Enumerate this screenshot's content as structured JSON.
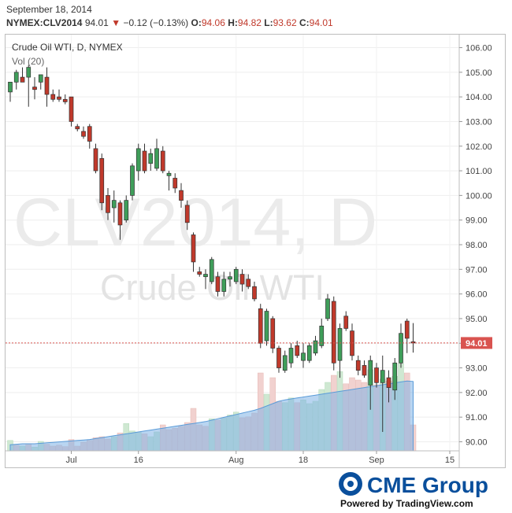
{
  "header": {
    "date": "September 18, 2014",
    "symbol": "NYMEX:CLV2014",
    "last": "94.01",
    "change": "−0.12 (−0.13%)",
    "open_label": "O:",
    "open": "94.06",
    "high_label": "H:",
    "high": "94.82",
    "low_label": "L:",
    "low": "93.62",
    "close_label": "C:",
    "close": "94.01"
  },
  "legend": {
    "title": "Crude Oil WTI, D, NYMEX",
    "volume": "Vol (20)"
  },
  "watermark": {
    "line1": "CLV2014, D",
    "line2": "Crude Oil WTI"
  },
  "price_badge": "94.01",
  "footer": {
    "brand": "CME Group",
    "powered": "Powered by TradingView.com"
  },
  "colors": {
    "up": "#3f9e5a",
    "down": "#c0392b",
    "volume_area": "#7fb3e6",
    "last_price": "#d9534f"
  },
  "chart_data": {
    "type": "candlestick",
    "y_axis": {
      "ylim": [
        89.6,
        106.4
      ],
      "ticks": [
        "106.00",
        "105.00",
        "104.00",
        "103.00",
        "102.00",
        "101.00",
        "100.00",
        "99.00",
        "98.00",
        "97.00",
        "96.00",
        "95.00",
        "94.00",
        "93.00",
        "92.00",
        "91.00",
        "90.00"
      ]
    },
    "x_axis": {
      "ticks": [
        {
          "label": "Jul",
          "index": 10
        },
        {
          "label": "16",
          "index": 21
        },
        {
          "label": "Aug",
          "index": 37
        },
        {
          "label": "18",
          "index": 48
        },
        {
          "label": "Sep",
          "index": 60
        },
        {
          "label": "15",
          "index": 72
        }
      ]
    },
    "last_price": 94.01,
    "candles": [
      {
        "o": 104.2,
        "h": 104.6,
        "l": 103.8,
        "c": 104.6
      },
      {
        "o": 104.6,
        "h": 105.1,
        "l": 104.3,
        "c": 105.0
      },
      {
        "o": 104.8,
        "h": 105.2,
        "l": 104.6,
        "c": 104.6
      },
      {
        "o": 104.8,
        "h": 105.3,
        "l": 103.6,
        "c": 105.2
      },
      {
        "o": 104.4,
        "h": 104.8,
        "l": 103.9,
        "c": 104.3
      },
      {
        "o": 104.6,
        "h": 104.9,
        "l": 104.3,
        "c": 104.9
      },
      {
        "o": 104.8,
        "h": 105.2,
        "l": 103.6,
        "c": 104.1
      },
      {
        "o": 104.1,
        "h": 104.3,
        "l": 103.8,
        "c": 103.9
      },
      {
        "o": 104.0,
        "h": 104.3,
        "l": 103.8,
        "c": 103.9
      },
      {
        "o": 103.9,
        "h": 104.1,
        "l": 103.7,
        "c": 103.8
      },
      {
        "o": 104.0,
        "h": 104.0,
        "l": 102.8,
        "c": 103.0
      },
      {
        "o": 102.8,
        "h": 102.9,
        "l": 102.6,
        "c": 102.7
      },
      {
        "o": 102.6,
        "h": 102.8,
        "l": 102.3,
        "c": 102.4
      },
      {
        "o": 102.8,
        "h": 102.9,
        "l": 101.9,
        "c": 102.2
      },
      {
        "o": 101.9,
        "h": 102.1,
        "l": 100.9,
        "c": 101.0
      },
      {
        "o": 101.5,
        "h": 101.7,
        "l": 99.4,
        "c": 99.7
      },
      {
        "o": 100.0,
        "h": 100.3,
        "l": 99.0,
        "c": 99.3
      },
      {
        "o": 99.5,
        "h": 100.2,
        "l": 98.9,
        "c": 99.8
      },
      {
        "o": 99.7,
        "h": 99.8,
        "l": 98.2,
        "c": 98.8
      },
      {
        "o": 99.0,
        "h": 100.0,
        "l": 98.9,
        "c": 99.8
      },
      {
        "o": 100.0,
        "h": 101.3,
        "l": 99.8,
        "c": 101.2
      },
      {
        "o": 101.0,
        "h": 102.1,
        "l": 100.6,
        "c": 101.9
      },
      {
        "o": 101.8,
        "h": 102.1,
        "l": 100.9,
        "c": 101.0
      },
      {
        "o": 101.3,
        "h": 101.9,
        "l": 101.0,
        "c": 101.7
      },
      {
        "o": 101.1,
        "h": 102.3,
        "l": 101.0,
        "c": 101.9
      },
      {
        "o": 101.8,
        "h": 102.0,
        "l": 100.9,
        "c": 101.0
      },
      {
        "o": 100.8,
        "h": 101.0,
        "l": 100.2,
        "c": 100.9
      },
      {
        "o": 100.7,
        "h": 100.9,
        "l": 100.1,
        "c": 100.3
      },
      {
        "o": 100.2,
        "h": 100.5,
        "l": 99.5,
        "c": 99.8
      },
      {
        "o": 99.6,
        "h": 99.8,
        "l": 98.6,
        "c": 98.9
      },
      {
        "o": 98.4,
        "h": 98.5,
        "l": 96.9,
        "c": 97.3
      },
      {
        "o": 96.9,
        "h": 97.1,
        "l": 96.7,
        "c": 96.8
      },
      {
        "o": 96.7,
        "h": 97.0,
        "l": 96.2,
        "c": 96.8
      },
      {
        "o": 96.5,
        "h": 97.5,
        "l": 96.4,
        "c": 97.4
      },
      {
        "o": 96.7,
        "h": 96.9,
        "l": 95.9,
        "c": 96.1
      },
      {
        "o": 96.1,
        "h": 96.9,
        "l": 95.9,
        "c": 96.6
      },
      {
        "o": 96.6,
        "h": 96.9,
        "l": 96.3,
        "c": 96.7
      },
      {
        "o": 96.5,
        "h": 97.1,
        "l": 96.4,
        "c": 97.0
      },
      {
        "o": 96.8,
        "h": 97.0,
        "l": 96.1,
        "c": 96.4
      },
      {
        "o": 96.6,
        "h": 96.8,
        "l": 96.2,
        "c": 96.3
      },
      {
        "o": 96.3,
        "h": 96.5,
        "l": 95.7,
        "c": 95.8
      },
      {
        "o": 95.4,
        "h": 95.6,
        "l": 93.8,
        "c": 94.0
      },
      {
        "o": 94.1,
        "h": 95.4,
        "l": 93.9,
        "c": 95.3
      },
      {
        "o": 95.0,
        "h": 95.1,
        "l": 93.6,
        "c": 93.8
      },
      {
        "o": 93.8,
        "h": 93.9,
        "l": 92.8,
        "c": 93.0
      },
      {
        "o": 92.9,
        "h": 93.7,
        "l": 92.8,
        "c": 93.5
      },
      {
        "o": 93.2,
        "h": 94.0,
        "l": 93.0,
        "c": 93.8
      },
      {
        "o": 93.9,
        "h": 94.1,
        "l": 93.4,
        "c": 93.5
      },
      {
        "o": 93.3,
        "h": 94.0,
        "l": 93.0,
        "c": 93.6
      },
      {
        "o": 93.3,
        "h": 94.0,
        "l": 93.2,
        "c": 93.9
      },
      {
        "o": 93.6,
        "h": 94.3,
        "l": 93.5,
        "c": 94.1
      },
      {
        "o": 93.9,
        "h": 95.0,
        "l": 93.8,
        "c": 94.7
      },
      {
        "o": 95.0,
        "h": 96.0,
        "l": 94.9,
        "c": 95.8
      },
      {
        "o": 95.7,
        "h": 95.9,
        "l": 92.9,
        "c": 93.2
      },
      {
        "o": 93.3,
        "h": 94.8,
        "l": 92.6,
        "c": 94.6
      },
      {
        "o": 95.1,
        "h": 95.3,
        "l": 94.5,
        "c": 94.6
      },
      {
        "o": 94.5,
        "h": 94.8,
        "l": 93.3,
        "c": 93.5
      },
      {
        "o": 93.3,
        "h": 93.5,
        "l": 92.7,
        "c": 92.9
      },
      {
        "o": 93.1,
        "h": 93.3,
        "l": 92.6,
        "c": 92.7
      },
      {
        "o": 92.3,
        "h": 93.5,
        "l": 91.3,
        "c": 93.3
      },
      {
        "o": 93.0,
        "h": 93.2,
        "l": 92.2,
        "c": 92.4
      },
      {
        "o": 92.4,
        "h": 93.5,
        "l": 90.4,
        "c": 92.9
      },
      {
        "o": 92.6,
        "h": 92.9,
        "l": 91.6,
        "c": 92.2
      },
      {
        "o": 92.1,
        "h": 93.4,
        "l": 91.7,
        "c": 93.2
      },
      {
        "o": 93.2,
        "h": 94.8,
        "l": 93.0,
        "c": 94.4
      },
      {
        "o": 94.9,
        "h": 95.0,
        "l": 93.6,
        "c": 94.2
      },
      {
        "o": 94.06,
        "h": 94.82,
        "l": 93.62,
        "c": 94.01
      }
    ],
    "volume": [
      {
        "v": 0.22,
        "up": true
      },
      {
        "v": 0.12,
        "up": false
      },
      {
        "v": 0.1,
        "up": true
      },
      {
        "v": 0.15,
        "up": false
      },
      {
        "v": 0.08,
        "up": true
      },
      {
        "v": 0.2,
        "up": true
      },
      {
        "v": 0.14,
        "up": false
      },
      {
        "v": 0.1,
        "up": false
      },
      {
        "v": 0.12,
        "up": false
      },
      {
        "v": 0.09,
        "up": false
      },
      {
        "v": 0.24,
        "up": false
      },
      {
        "v": 0.1,
        "up": false
      },
      {
        "v": 0.18,
        "up": false
      },
      {
        "v": 0.22,
        "up": false
      },
      {
        "v": 0.28,
        "up": false
      },
      {
        "v": 0.3,
        "up": false
      },
      {
        "v": 0.25,
        "up": false
      },
      {
        "v": 0.3,
        "up": true
      },
      {
        "v": 0.38,
        "up": false
      },
      {
        "v": 0.58,
        "up": true
      },
      {
        "v": 0.42,
        "up": true
      },
      {
        "v": 0.4,
        "up": true
      },
      {
        "v": 0.36,
        "up": false
      },
      {
        "v": 0.3,
        "up": true
      },
      {
        "v": 0.4,
        "up": true
      },
      {
        "v": 0.55,
        "up": false
      },
      {
        "v": 0.45,
        "up": false
      },
      {
        "v": 0.48,
        "up": false
      },
      {
        "v": 0.52,
        "up": false
      },
      {
        "v": 0.6,
        "up": false
      },
      {
        "v": 0.9,
        "up": false
      },
      {
        "v": 0.55,
        "up": false
      },
      {
        "v": 0.52,
        "up": false
      },
      {
        "v": 0.68,
        "up": true
      },
      {
        "v": 0.65,
        "up": false
      },
      {
        "v": 0.7,
        "up": true
      },
      {
        "v": 0.76,
        "up": true
      },
      {
        "v": 0.82,
        "up": true
      },
      {
        "v": 0.7,
        "up": false
      },
      {
        "v": 0.72,
        "up": false
      },
      {
        "v": 0.8,
        "up": false
      },
      {
        "v": 1.65,
        "up": false
      },
      {
        "v": 1.2,
        "up": true
      },
      {
        "v": 1.55,
        "up": false
      },
      {
        "v": 1.05,
        "up": false
      },
      {
        "v": 1.02,
        "up": true
      },
      {
        "v": 1.12,
        "up": true
      },
      {
        "v": 1.02,
        "up": false
      },
      {
        "v": 1.08,
        "up": true
      },
      {
        "v": 1.0,
        "up": true
      },
      {
        "v": 1.05,
        "up": true
      },
      {
        "v": 1.3,
        "up": true
      },
      {
        "v": 1.45,
        "up": true
      },
      {
        "v": 1.6,
        "up": false
      },
      {
        "v": 1.68,
        "up": true
      },
      {
        "v": 1.42,
        "up": false
      },
      {
        "v": 1.55,
        "up": false
      },
      {
        "v": 1.5,
        "up": false
      },
      {
        "v": 1.45,
        "up": false
      },
      {
        "v": 1.72,
        "up": true
      },
      {
        "v": 1.4,
        "up": false
      },
      {
        "v": 1.52,
        "up": true
      },
      {
        "v": 1.48,
        "up": false
      },
      {
        "v": 1.58,
        "up": true
      },
      {
        "v": 1.85,
        "up": true
      },
      {
        "v": 1.65,
        "up": false
      },
      {
        "v": 0.55,
        "up": false
      }
    ],
    "volume_ma": [
      0.13,
      0.14,
      0.15,
      0.15,
      0.15,
      0.16,
      0.17,
      0.18,
      0.19,
      0.2,
      0.21,
      0.22,
      0.23,
      0.24,
      0.26,
      0.28,
      0.3,
      0.32,
      0.34,
      0.36,
      0.38,
      0.4,
      0.42,
      0.44,
      0.46,
      0.48,
      0.5,
      0.52,
      0.54,
      0.56,
      0.58,
      0.6,
      0.62,
      0.65,
      0.68,
      0.71,
      0.74,
      0.77,
      0.8,
      0.83,
      0.86,
      0.9,
      0.95,
      1.0,
      1.05,
      1.08,
      1.1,
      1.12,
      1.14,
      1.16,
      1.18,
      1.2,
      1.22,
      1.24,
      1.26,
      1.28,
      1.3,
      1.32,
      1.34,
      1.36,
      1.38,
      1.4,
      1.42,
      1.44,
      1.46,
      1.48,
      1.47
    ]
  }
}
